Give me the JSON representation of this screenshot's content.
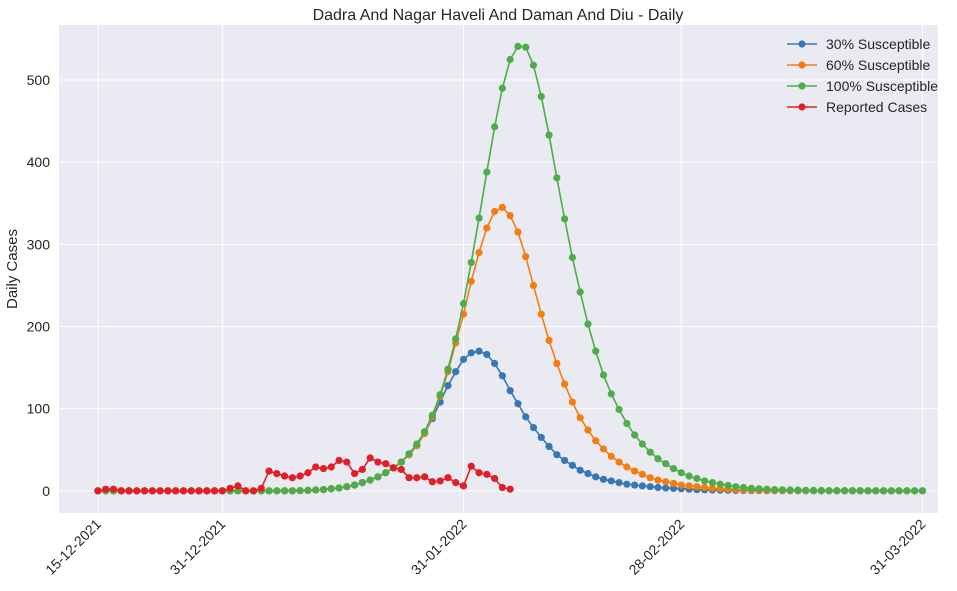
{
  "chart_data": {
    "type": "line",
    "title": "Dadra And Nagar Haveli And Daman And Diu - Daily",
    "xlabel": "",
    "ylabel": "Daily Cases",
    "x_start": "2021-12-15",
    "x_step_days": 1,
    "x_ticks": [
      "15-12-2021",
      "31-12-2021",
      "31-01-2022",
      "28-02-2022",
      "31-03-2022"
    ],
    "x_ticks_dates": [
      "2021-12-15",
      "2021-12-31",
      "2022-01-31",
      "2022-02-28",
      "2022-03-31"
    ],
    "x_range": [
      "2021-12-10",
      "2022-04-02"
    ],
    "ylim": [
      -27,
      567
    ],
    "y_ticks": [
      0,
      100,
      200,
      300,
      400,
      500
    ],
    "grid": true,
    "legend_position": "top-right",
    "series": [
      {
        "name": "30% Susceptible",
        "color": "#3778b4",
        "start": "2021-12-15",
        "values": [
          0,
          0,
          0,
          0,
          0,
          0,
          0,
          0,
          0,
          0,
          0,
          0,
          0,
          0,
          0,
          0,
          0,
          0,
          0,
          0,
          0,
          0,
          0,
          0,
          0,
          0,
          0.3,
          0.5,
          1,
          1.5,
          2.5,
          3.5,
          5,
          7,
          10,
          13,
          17,
          22,
          28,
          35,
          44,
          55,
          70,
          88,
          108,
          128,
          145,
          160,
          168,
          170,
          166,
          155,
          140,
          122,
          106,
          90,
          77,
          65,
          54,
          44,
          37,
          31,
          25,
          21,
          17,
          14,
          12,
          10,
          8,
          7,
          6,
          5,
          4,
          3.5,
          3,
          2.5,
          2,
          1.5,
          1.2,
          1,
          0.8,
          0.6,
          0.5,
          0.4,
          0.3,
          0.3,
          0.2,
          0.2,
          0.1,
          0.1,
          0.1,
          0.1,
          0,
          0,
          0,
          0,
          0,
          0,
          0,
          0,
          0,
          0,
          0,
          0,
          0,
          0,
          0
        ]
      },
      {
        "name": "60% Susceptible",
        "color": "#f57d0f",
        "start": "2021-12-15",
        "values": [
          0,
          0,
          0,
          0,
          0,
          0,
          0,
          0,
          0,
          0,
          0,
          0,
          0,
          0,
          0,
          0,
          0,
          0,
          0,
          0,
          0,
          0,
          0,
          0,
          0,
          0,
          0.3,
          0.5,
          1,
          1.5,
          2.5,
          3.5,
          5,
          7,
          10,
          13,
          17,
          22,
          28,
          35,
          44,
          55,
          70,
          90,
          115,
          145,
          180,
          215,
          255,
          290,
          320,
          340,
          345,
          335,
          315,
          285,
          250,
          215,
          183,
          155,
          130,
          108,
          89,
          74,
          61,
          51,
          42,
          35,
          29,
          24,
          20,
          16,
          13,
          11,
          9,
          7,
          6,
          5,
          4,
          3,
          2.5,
          2,
          1.5,
          1.2,
          1,
          0.8,
          0.6,
          0.5,
          0.4,
          0.3,
          0.2,
          0.2,
          0.1,
          0.1,
          0,
          0,
          0,
          0,
          0,
          0,
          0,
          0,
          0,
          0,
          0
        ]
      },
      {
        "name": "100% Susceptible",
        "color": "#4fac4a",
        "start": "2021-12-15",
        "values": [
          0,
          0,
          0,
          0,
          0,
          0,
          0,
          0,
          0,
          0,
          0,
          0,
          0,
          0,
          0,
          0,
          0,
          0,
          0,
          0,
          0,
          0,
          0,
          0,
          0,
          0,
          0.3,
          0.5,
          1,
          1.5,
          2.5,
          3.5,
          5,
          7,
          10,
          13,
          17,
          22,
          28,
          35,
          45,
          57,
          72,
          92,
          117,
          148,
          185,
          228,
          278,
          332,
          388,
          443,
          490,
          525,
          541,
          540,
          518,
          480,
          433,
          381,
          331,
          284,
          242,
          203,
          170,
          141,
          118,
          99,
          82,
          68,
          57,
          47,
          39,
          33,
          27,
          22,
          18,
          15,
          12,
          10,
          8,
          6.5,
          5,
          4,
          3,
          2.5,
          2,
          1.5,
          1.2,
          1,
          0.8,
          0.6,
          0.5,
          0.4,
          0.3,
          0.2,
          0.2,
          0.1,
          0.1,
          0,
          0,
          0,
          0,
          0,
          0,
          0,
          0
        ]
      },
      {
        "name": "Reported Cases",
        "color": "#e21e26",
        "start": "2021-12-15",
        "values": [
          0,
          2,
          2,
          0,
          0,
          0,
          0,
          0,
          0,
          0,
          0,
          0,
          0,
          0,
          0,
          0,
          0,
          3,
          6,
          0,
          0,
          3,
          24,
          21,
          18,
          16,
          18,
          22,
          29,
          27,
          29,
          37,
          35,
          21,
          26,
          40,
          35,
          33,
          28,
          26,
          16,
          16,
          17,
          11,
          12,
          16,
          10,
          6,
          30,
          22,
          20,
          15,
          4,
          2
        ]
      }
    ]
  }
}
